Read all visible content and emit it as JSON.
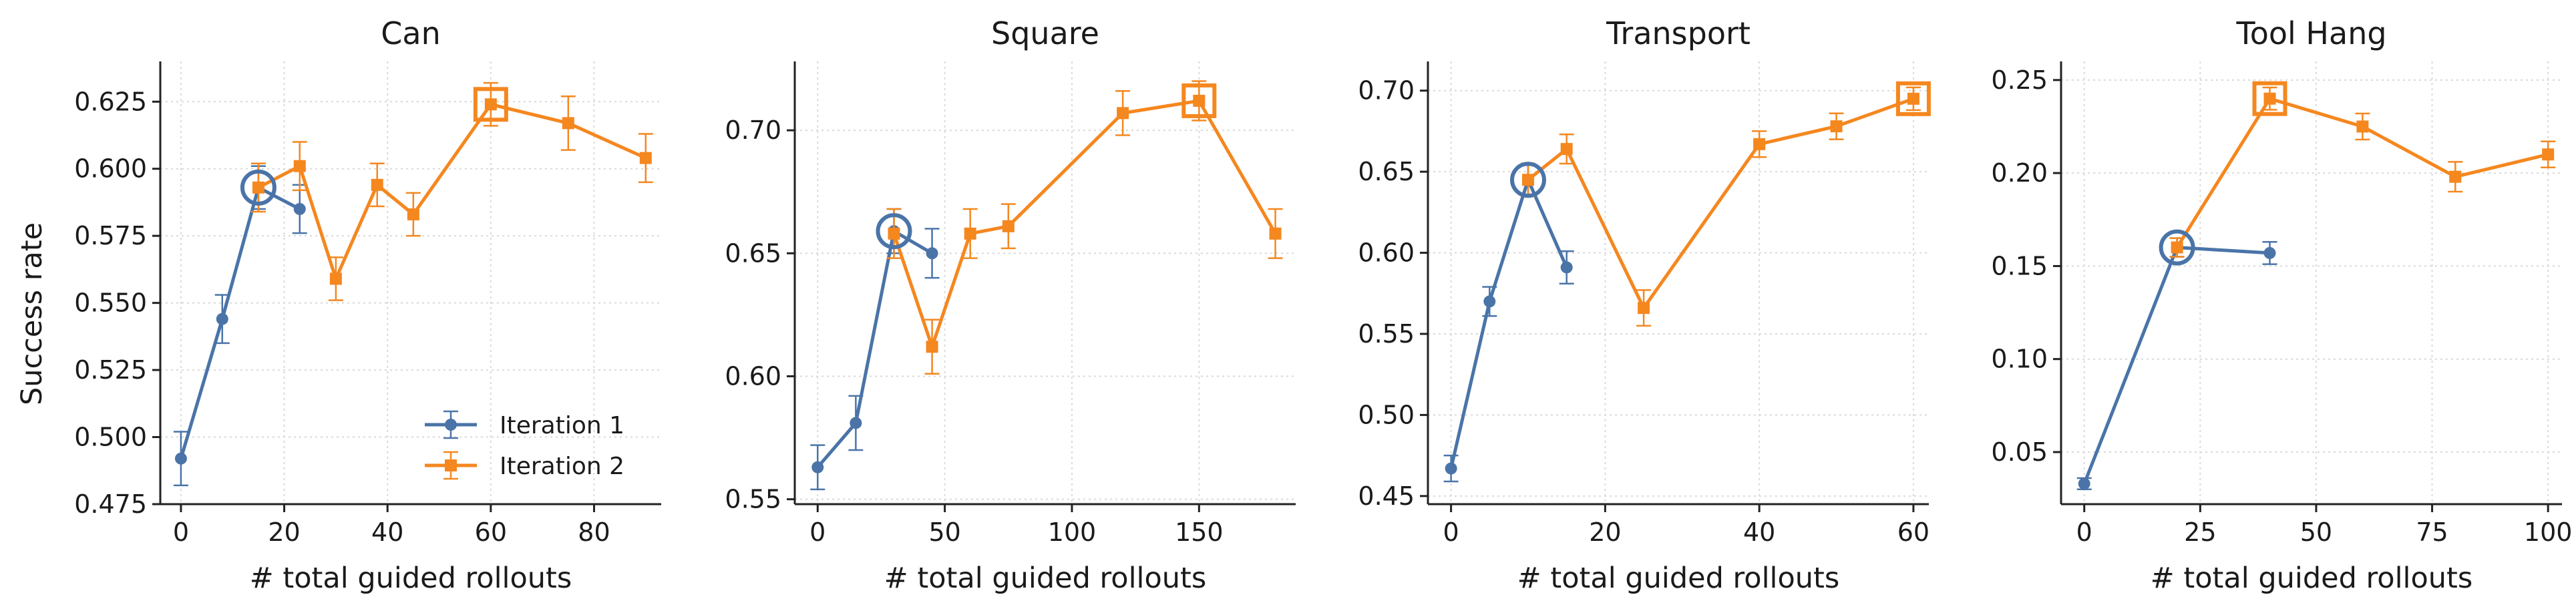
{
  "figure": {
    "ylabel": "Success rate",
    "legend": [
      "Iteration 1",
      "Iteration 2"
    ]
  },
  "chart_data": [
    {
      "type": "line",
      "title": "Can",
      "xlabel": "# total guided rollouts",
      "ylabel": "Success rate",
      "xlim": [
        -4,
        93
      ],
      "ylim": [
        0.475,
        0.64
      ],
      "xticks": [
        0,
        20,
        40,
        60,
        80
      ],
      "yticks": [
        0.475,
        0.5,
        0.525,
        0.55,
        0.575,
        0.6,
        0.625
      ],
      "ytick_labels": [
        "0.475",
        "0.500",
        "0.525",
        "0.550",
        "0.575",
        "0.600",
        "0.625"
      ],
      "legend_position": "lower-right",
      "grid": true,
      "series": [
        {
          "name": "Iteration 1",
          "color": "#4a74a8",
          "marker": "circle",
          "x": [
            0,
            8,
            15,
            23
          ],
          "y": [
            0.492,
            0.544,
            0.593,
            0.585
          ],
          "err": [
            0.01,
            0.009,
            0.008,
            0.009
          ]
        },
        {
          "name": "Iteration 2",
          "color": "#f5871f",
          "marker": "square",
          "x": [
            15,
            23,
            30,
            38,
            45,
            60,
            75,
            90
          ],
          "y": [
            0.593,
            0.601,
            0.559,
            0.594,
            0.583,
            0.624,
            0.617,
            0.604
          ],
          "err": [
            0.009,
            0.009,
            0.008,
            0.008,
            0.008,
            0.008,
            0.01,
            0.009
          ]
        }
      ],
      "highlight": {
        "circle": [
          15,
          0.593
        ],
        "square": [
          60,
          0.624
        ]
      }
    },
    {
      "type": "line",
      "title": "Square",
      "xlabel": "# total guided rollouts",
      "ylabel": "",
      "xlim": [
        -9,
        188
      ],
      "ylim": [
        0.548,
        0.728
      ],
      "xticks": [
        0,
        50,
        100,
        150
      ],
      "yticks": [
        0.55,
        0.6,
        0.65,
        0.7
      ],
      "ytick_labels": [
        "0.55",
        "0.60",
        "0.65",
        "0.70"
      ],
      "grid": true,
      "series": [
        {
          "name": "Iteration 1",
          "color": "#4a74a8",
          "marker": "circle",
          "x": [
            0,
            15,
            30,
            45
          ],
          "y": [
            0.563,
            0.581,
            0.659,
            0.65
          ],
          "err": [
            0.009,
            0.011,
            0.009,
            0.01
          ]
        },
        {
          "name": "Iteration 2",
          "color": "#f5871f",
          "marker": "square",
          "x": [
            30,
            45,
            60,
            75,
            120,
            150,
            180
          ],
          "y": [
            0.658,
            0.612,
            0.658,
            0.661,
            0.707,
            0.712,
            0.658
          ],
          "err": [
            0.01,
            0.011,
            0.01,
            0.009,
            0.009,
            0.008,
            0.01
          ]
        }
      ],
      "highlight": {
        "circle": [
          30,
          0.659
        ],
        "square": [
          150,
          0.712
        ]
      }
    },
    {
      "type": "line",
      "title": "Transport",
      "xlabel": "# total guided rollouts",
      "ylabel": "",
      "xlim": [
        -3,
        62
      ],
      "ylim": [
        0.445,
        0.718
      ],
      "xticks": [
        0,
        20,
        40,
        60
      ],
      "yticks": [
        0.45,
        0.5,
        0.55,
        0.6,
        0.65,
        0.7
      ],
      "ytick_labels": [
        "0.45",
        "0.50",
        "0.55",
        "0.60",
        "0.65",
        "0.70"
      ],
      "grid": true,
      "series": [
        {
          "name": "Iteration 1",
          "color": "#4a74a8",
          "marker": "circle",
          "x": [
            0,
            5,
            10,
            15
          ],
          "y": [
            0.467,
            0.57,
            0.645,
            0.591
          ],
          "err": [
            0.008,
            0.009,
            0.009,
            0.01
          ]
        },
        {
          "name": "Iteration 2",
          "color": "#f5871f",
          "marker": "square",
          "x": [
            10,
            15,
            25,
            40,
            50,
            60
          ],
          "y": [
            0.645,
            0.664,
            0.566,
            0.667,
            0.678,
            0.695
          ],
          "err": [
            0.01,
            0.009,
            0.011,
            0.008,
            0.008,
            0.007
          ]
        }
      ],
      "highlight": {
        "circle": [
          10,
          0.645
        ],
        "square": [
          60,
          0.695
        ]
      }
    },
    {
      "type": "line",
      "title": "Tool Hang",
      "xlabel": "# total guided rollouts",
      "ylabel": "",
      "xlim": [
        -5,
        103
      ],
      "ylim": [
        0.022,
        0.26
      ],
      "xticks": [
        0,
        25,
        50,
        75,
        100
      ],
      "yticks": [
        0.05,
        0.1,
        0.15,
        0.2,
        0.25
      ],
      "ytick_labels": [
        "0.05",
        "0.10",
        "0.15",
        "0.20",
        "0.25"
      ],
      "grid": true,
      "series": [
        {
          "name": "Iteration 1",
          "color": "#4a74a8",
          "marker": "circle",
          "x": [
            0,
            20,
            40
          ],
          "y": [
            0.033,
            0.16,
            0.157
          ],
          "err": [
            0.003,
            0.005,
            0.006
          ]
        },
        {
          "name": "Iteration 2",
          "color": "#f5871f",
          "marker": "square",
          "x": [
            20,
            40,
            60,
            80,
            100
          ],
          "y": [
            0.16,
            0.24,
            0.225,
            0.198,
            0.21
          ],
          "err": [
            0.005,
            0.006,
            0.007,
            0.008,
            0.007
          ]
        }
      ],
      "highlight": {
        "circle": [
          20,
          0.16
        ],
        "square": [
          40,
          0.24
        ]
      }
    }
  ]
}
